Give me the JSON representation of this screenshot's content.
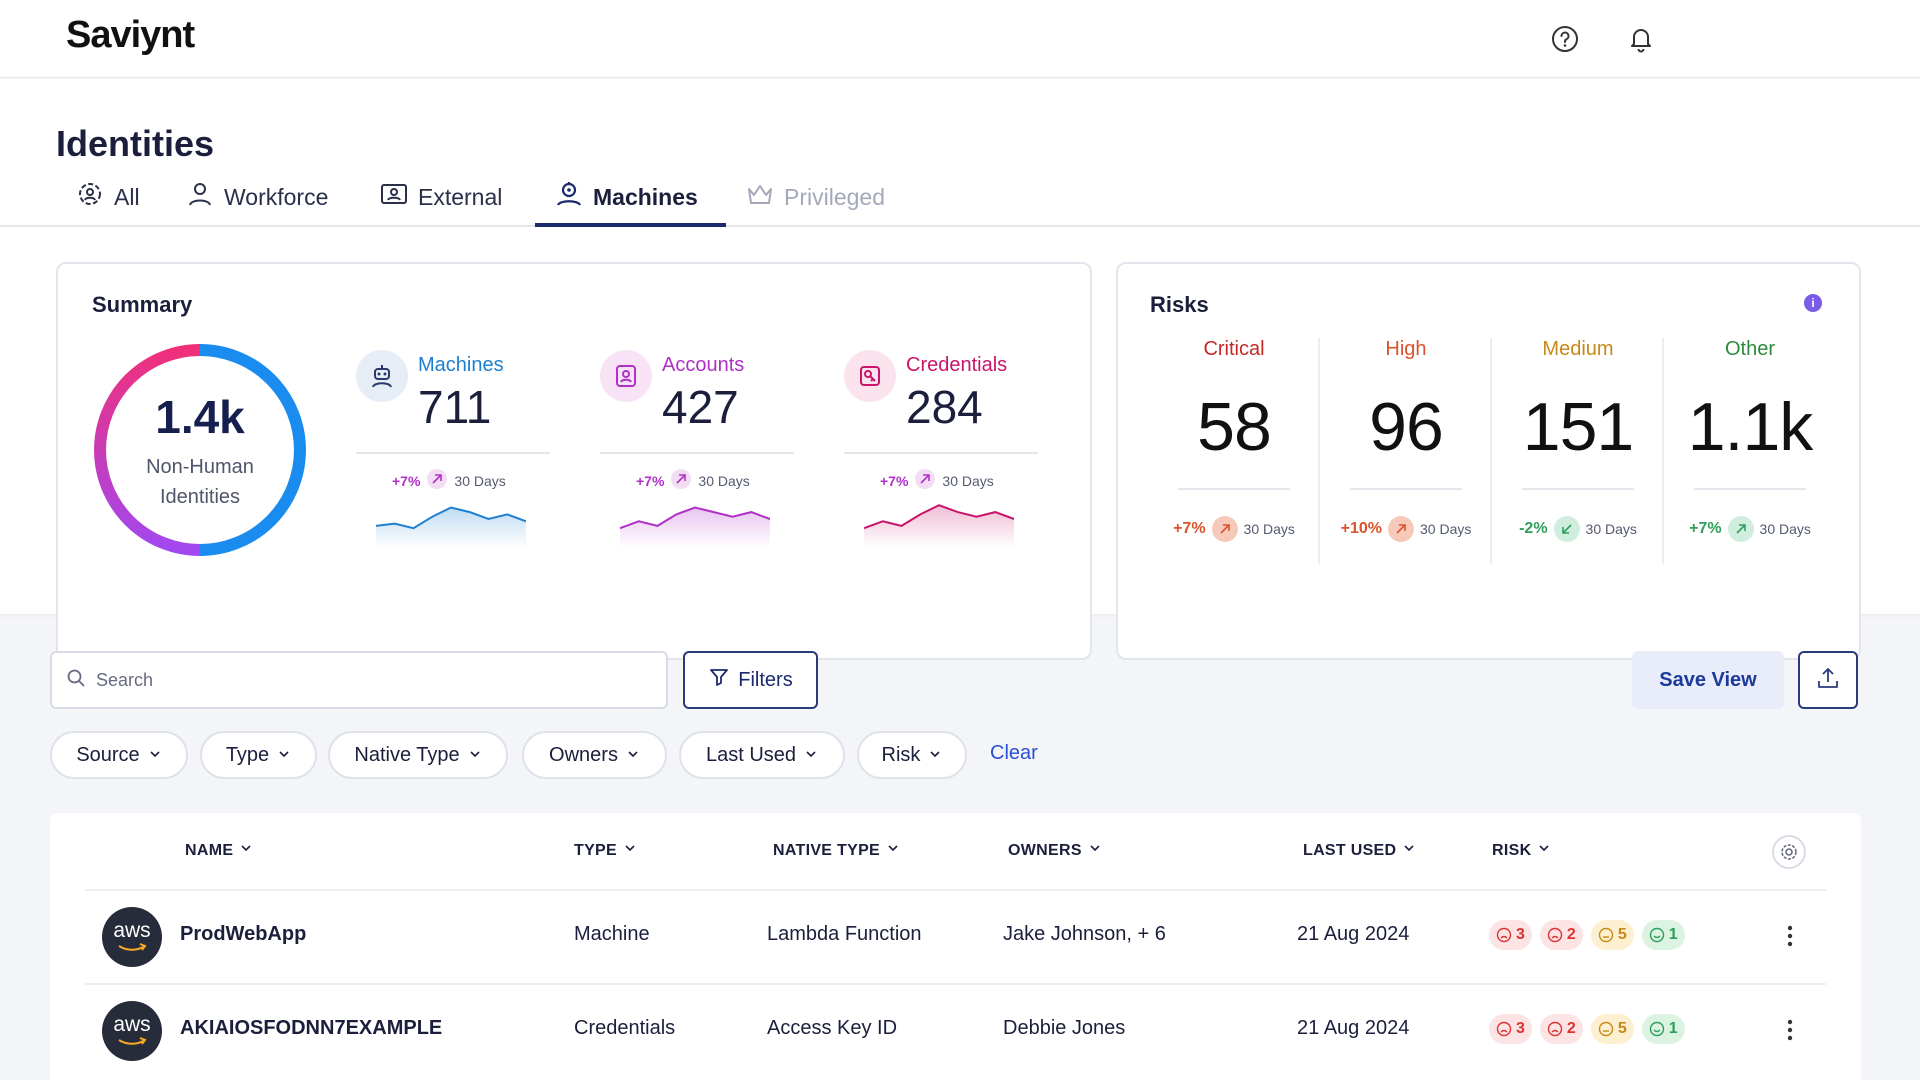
{
  "app": {
    "logo": "Saviynt"
  },
  "header": {
    "help_icon": "help-circle-icon",
    "bell_icon": "bell-icon"
  },
  "page": {
    "title": "Identities"
  },
  "tabs": [
    {
      "label": "All",
      "icon": "users-gear-icon",
      "state": "normal"
    },
    {
      "label": "Workforce",
      "icon": "user-icon",
      "state": "normal"
    },
    {
      "label": "External",
      "icon": "id-card-icon",
      "state": "normal"
    },
    {
      "label": "Machines",
      "icon": "robot-icon",
      "state": "active"
    },
    {
      "label": "Privileged",
      "icon": "crown-icon",
      "state": "disabled"
    }
  ],
  "summary": {
    "title": "Summary",
    "total_value": "1.4k",
    "total_label_1": "Non-Human",
    "total_label_2": "Identities",
    "metrics": [
      {
        "label": "Machines",
        "value": "711",
        "trend": "+7%",
        "period": "30 Days",
        "color": "#1d7fd1",
        "icon": "robot-icon",
        "spark": [
          14,
          16,
          12,
          22,
          30,
          26,
          20,
          24,
          18
        ]
      },
      {
        "label": "Accounts",
        "value": "427",
        "trend": "+7%",
        "period": "30 Days",
        "color": "#b030c8",
        "icon": "user-card-icon",
        "spark": [
          12,
          18,
          14,
          24,
          30,
          26,
          22,
          26,
          20
        ]
      },
      {
        "label": "Credentials",
        "value": "284",
        "trend": "+7%",
        "period": "30 Days",
        "color": "#c8146a",
        "icon": "key-card-icon",
        "spark": [
          12,
          18,
          14,
          24,
          32,
          26,
          22,
          26,
          20
        ]
      }
    ]
  },
  "risks": {
    "title": "Risks",
    "info_icon": "info-icon",
    "items": [
      {
        "label": "Critical",
        "value": "58",
        "trend": "+7%",
        "period": "30 Days",
        "label_color": "#c62828",
        "pct_color": "#d9532c",
        "badge_bg": "#f7c9b8",
        "direction": "up"
      },
      {
        "label": "High",
        "value": "96",
        "trend": "+10%",
        "period": "30 Days",
        "label_color": "#d9532c",
        "pct_color": "#d9532c",
        "badge_bg": "#f7c9b8",
        "direction": "up"
      },
      {
        "label": "Medium",
        "value": "151",
        "trend": "-2%",
        "period": "30 Days",
        "label_color": "#c7891a",
        "pct_color": "#2e9e5b",
        "badge_bg": "#cfeedd",
        "direction": "down"
      },
      {
        "label": "Other",
        "value": "1.1k",
        "trend": "+7%",
        "period": "30 Days",
        "label_color": "#2e8b3e",
        "pct_color": "#2e9e5b",
        "badge_bg": "#cfeedd",
        "direction": "up"
      }
    ]
  },
  "toolbar": {
    "search_placeholder": "Search",
    "filters_label": "Filters",
    "save_view_label": "Save View",
    "export_icon": "upload-icon"
  },
  "chips": [
    "Source",
    "Type",
    "Native Type",
    "Owners",
    "Last Used",
    "Risk"
  ],
  "clear_label": "Clear",
  "table": {
    "columns": [
      "NAME",
      "TYPE",
      "NATIVE TYPE",
      "OWNERS",
      "LAST USED",
      "RISK"
    ],
    "settings_icon": "gear-icon",
    "rows": [
      {
        "logo": "aws",
        "name": "ProdWebApp",
        "type": "Machine",
        "native_type": "Lambda Function",
        "owners": "Jake Johnson, + 6",
        "last_used": "21 Aug 2024",
        "risk": [
          "3",
          "2",
          "5",
          "1"
        ]
      },
      {
        "logo": "aws",
        "name": "AKIAIOSFODNN7EXAMPLE",
        "type": "Credentials",
        "native_type": "Access Key ID",
        "owners": "Debbie Jones",
        "last_used": "21 Aug 2024",
        "risk": [
          "3",
          "2",
          "5",
          "1"
        ]
      }
    ]
  }
}
